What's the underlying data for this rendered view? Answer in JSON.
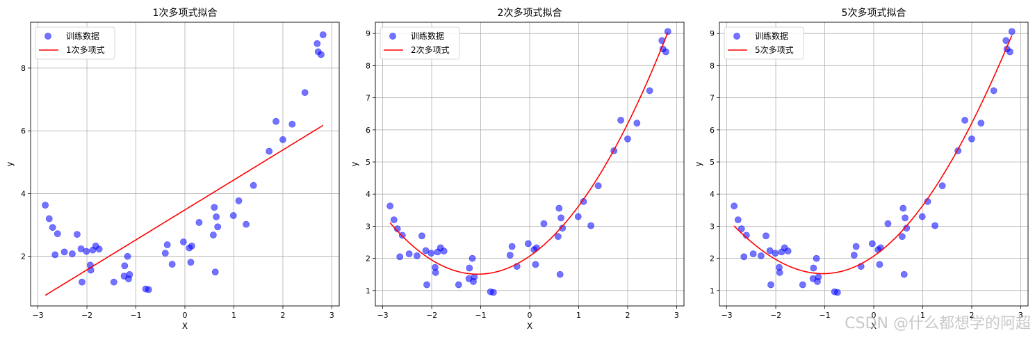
{
  "colors": {
    "scatter": "#0000ff",
    "fit": "#ff0000",
    "grid": "#b0b0b0"
  },
  "training_x": [
    -2.85,
    -2.77,
    -2.7,
    -2.65,
    -2.6,
    -2.46,
    -2.3,
    -2.2,
    -2.12,
    -2.1,
    -2.01,
    -1.93,
    -1.92,
    -1.88,
    -1.82,
    -1.75,
    -1.45,
    -1.24,
    -1.23,
    -1.17,
    -1.15,
    -1.13,
    -0.8,
    -0.74,
    -0.4,
    -0.36,
    -0.26,
    -0.03,
    0.09,
    0.12,
    0.14,
    0.29,
    0.58,
    0.6,
    0.62,
    0.64,
    0.67,
    0.99,
    1.1,
    1.25,
    1.4,
    1.72,
    1.86,
    2.0,
    2.19,
    2.45,
    2.7,
    2.72,
    2.78,
    2.82
  ],
  "training_y": [
    3.63,
    3.2,
    2.92,
    2.05,
    2.72,
    2.14,
    2.08,
    2.7,
    2.24,
    1.18,
    2.16,
    1.72,
    1.56,
    2.2,
    2.33,
    2.23,
    1.18,
    1.37,
    1.7,
    2.0,
    1.28,
    1.42,
    0.96,
    0.94,
    2.1,
    2.37,
    1.75,
    2.46,
    2.27,
    1.81,
    2.33,
    3.08,
    2.68,
    3.56,
    1.5,
    3.26,
    2.94,
    3.3,
    3.77,
    3.02,
    4.26,
    5.35,
    6.3,
    5.72,
    6.21,
    7.22,
    8.78,
    8.52,
    8.43,
    9.06
  ],
  "chart_data": [
    {
      "type": "scatter",
      "title": "1次多项式拟合",
      "xlabel": "X",
      "ylabel": "y",
      "xlim": [
        -3.15,
        3.15
      ],
      "ylim": [
        0.42,
        9.46
      ],
      "xticks": [
        -3,
        -2,
        -1,
        0,
        1,
        2,
        3
      ],
      "yticks": [
        2,
        4,
        6,
        8
      ],
      "grid": true,
      "legend_position": "top-left",
      "series": [
        {
          "name": "训练数据",
          "type": "scatter"
        },
        {
          "name": "1次多项式",
          "type": "line",
          "degree": 1,
          "coefficients": [
            3.48,
            0.955
          ]
        }
      ]
    },
    {
      "type": "scatter",
      "title": "2次多项式拟合",
      "xlabel": "X",
      "ylabel": "y",
      "xlim": [
        -3.15,
        3.15
      ],
      "ylim": [
        0.52,
        9.35
      ],
      "xticks": [
        -3,
        -2,
        -1,
        0,
        1,
        2,
        3
      ],
      "yticks": [
        1,
        2,
        3,
        4,
        5,
        6,
        7,
        8,
        9
      ],
      "grid": true,
      "legend_position": "top-left",
      "series": [
        {
          "name": "训练数据",
          "type": "scatter"
        },
        {
          "name": "2次多项式",
          "type": "line",
          "degree": 2,
          "coefficients": [
            2.07,
            1.06,
            0.5
          ]
        }
      ]
    },
    {
      "type": "scatter",
      "title": "5次多项式拟合",
      "xlabel": "X",
      "ylabel": "y",
      "xlim": [
        -3.15,
        3.15
      ],
      "ylim": [
        0.52,
        9.35
      ],
      "xticks": [
        -3,
        -2,
        -1,
        0,
        1,
        2,
        3
      ],
      "yticks": [
        1,
        2,
        3,
        4,
        5,
        6,
        7,
        8,
        9
      ],
      "grid": true,
      "legend_position": "top-left",
      "series": [
        {
          "name": "训练数据",
          "type": "scatter"
        },
        {
          "name": "5次多项式",
          "type": "line",
          "degree": 5,
          "coefficients": [
            2.07,
            1.06,
            0.52,
            0.0,
            -0.004,
            0.0
          ]
        }
      ]
    }
  ],
  "watermark": "CSDN @什么都想学的阿超"
}
